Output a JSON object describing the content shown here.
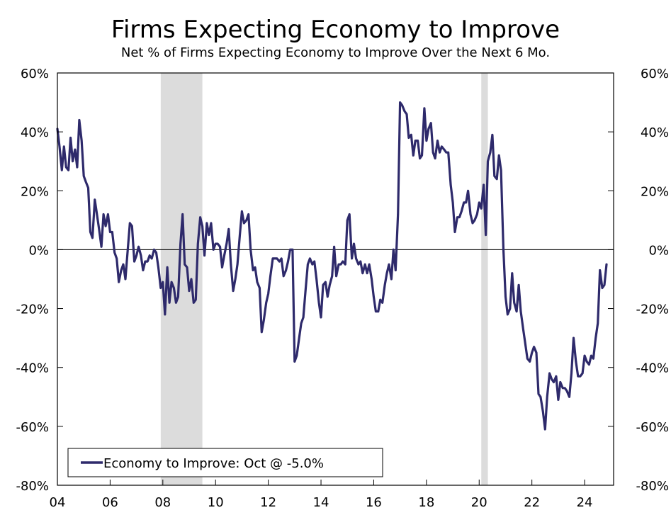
{
  "chart_data": {
    "type": "line",
    "title": "Firms Expecting Economy to Improve",
    "subtitle": "Net % of Firms Expecting Economy to Improve Over the Next 6 Mo.",
    "xlabel": "",
    "ylabel": "",
    "xlim": [
      2004,
      2025.1
    ],
    "ylim": [
      -80,
      60
    ],
    "x_ticks": [
      2004,
      2006,
      2008,
      2010,
      2012,
      2014,
      2016,
      2018,
      2020,
      2022,
      2024
    ],
    "x_tick_labels": [
      "04",
      "06",
      "08",
      "10",
      "12",
      "14",
      "16",
      "18",
      "20",
      "22",
      "24"
    ],
    "y_ticks": [
      60,
      40,
      20,
      0,
      -20,
      -40,
      -60,
      -80
    ],
    "y_tick_labels": [
      "60%",
      "40%",
      "20%",
      "0%",
      "-20%",
      "-40%",
      "-60%",
      "-80%"
    ],
    "y_axes": "left-and-right",
    "grid": false,
    "zero_line": true,
    "legend_position": "bottom-left",
    "recession_shading": [
      {
        "start": 2007.92,
        "end": 2009.5
      },
      {
        "start": 2020.08,
        "end": 2020.33
      }
    ],
    "series": [
      {
        "name": "Economy to Improve: Oct @ -5.0%",
        "color": "#2e2a6b",
        "points": [
          [
            2004.0,
            41
          ],
          [
            2004.08,
            35
          ],
          [
            2004.17,
            27
          ],
          [
            2004.25,
            35
          ],
          [
            2004.33,
            28
          ],
          [
            2004.42,
            27
          ],
          [
            2004.5,
            38
          ],
          [
            2004.58,
            30
          ],
          [
            2004.67,
            34
          ],
          [
            2004.75,
            28
          ],
          [
            2004.83,
            44
          ],
          [
            2004.92,
            37
          ],
          [
            2005.0,
            25
          ],
          [
            2005.08,
            23
          ],
          [
            2005.17,
            21
          ],
          [
            2005.25,
            6
          ],
          [
            2005.33,
            4
          ],
          [
            2005.42,
            17
          ],
          [
            2005.5,
            12
          ],
          [
            2005.58,
            7
          ],
          [
            2005.67,
            1
          ],
          [
            2005.75,
            12
          ],
          [
            2005.83,
            8
          ],
          [
            2005.92,
            12
          ],
          [
            2006.0,
            6
          ],
          [
            2006.08,
            6
          ],
          [
            2006.17,
            -1
          ],
          [
            2006.25,
            -3
          ],
          [
            2006.33,
            -11
          ],
          [
            2006.42,
            -7
          ],
          [
            2006.5,
            -5
          ],
          [
            2006.58,
            -10
          ],
          [
            2006.67,
            0
          ],
          [
            2006.75,
            9
          ],
          [
            2006.83,
            8
          ],
          [
            2006.92,
            -4
          ],
          [
            2007.0,
            -2
          ],
          [
            2007.08,
            1
          ],
          [
            2007.17,
            -2
          ],
          [
            2007.25,
            -7
          ],
          [
            2007.33,
            -4
          ],
          [
            2007.42,
            -4
          ],
          [
            2007.5,
            -2
          ],
          [
            2007.58,
            -3
          ],
          [
            2007.67,
            0
          ],
          [
            2007.75,
            -1
          ],
          [
            2007.83,
            -6
          ],
          [
            2007.92,
            -13
          ],
          [
            2008.0,
            -11
          ],
          [
            2008.08,
            -22
          ],
          [
            2008.17,
            -6
          ],
          [
            2008.25,
            -18
          ],
          [
            2008.33,
            -11
          ],
          [
            2008.42,
            -13
          ],
          [
            2008.5,
            -18
          ],
          [
            2008.58,
            -16
          ],
          [
            2008.67,
            2
          ],
          [
            2008.75,
            12
          ],
          [
            2008.83,
            -5
          ],
          [
            2008.92,
            -6
          ],
          [
            2009.0,
            -14
          ],
          [
            2009.08,
            -10
          ],
          [
            2009.17,
            -18
          ],
          [
            2009.25,
            -17
          ],
          [
            2009.33,
            2
          ],
          [
            2009.42,
            11
          ],
          [
            2009.5,
            8
          ],
          [
            2009.58,
            -2
          ],
          [
            2009.67,
            9
          ],
          [
            2009.75,
            5
          ],
          [
            2009.83,
            9
          ],
          [
            2009.92,
            0
          ],
          [
            2010.0,
            2
          ],
          [
            2010.08,
            2
          ],
          [
            2010.17,
            1
          ],
          [
            2010.25,
            -6
          ],
          [
            2010.33,
            -2
          ],
          [
            2010.42,
            2
          ],
          [
            2010.5,
            7
          ],
          [
            2010.58,
            -5
          ],
          [
            2010.67,
            -14
          ],
          [
            2010.75,
            -10
          ],
          [
            2010.83,
            -5
          ],
          [
            2010.92,
            5
          ],
          [
            2011.0,
            13
          ],
          [
            2011.08,
            9
          ],
          [
            2011.17,
            10
          ],
          [
            2011.25,
            12
          ],
          [
            2011.33,
            0
          ],
          [
            2011.42,
            -7
          ],
          [
            2011.5,
            -6
          ],
          [
            2011.58,
            -11
          ],
          [
            2011.67,
            -13
          ],
          [
            2011.75,
            -28
          ],
          [
            2011.83,
            -24
          ],
          [
            2011.92,
            -18
          ],
          [
            2012.0,
            -15
          ],
          [
            2012.08,
            -9
          ],
          [
            2012.17,
            -3
          ],
          [
            2012.25,
            -3
          ],
          [
            2012.33,
            -3
          ],
          [
            2012.42,
            -4
          ],
          [
            2012.5,
            -3
          ],
          [
            2012.58,
            -9
          ],
          [
            2012.67,
            -7
          ],
          [
            2012.75,
            -4
          ],
          [
            2012.83,
            0
          ],
          [
            2012.92,
            0
          ],
          [
            2013.0,
            -38
          ],
          [
            2013.08,
            -36
          ],
          [
            2013.17,
            -30
          ],
          [
            2013.25,
            -25
          ],
          [
            2013.33,
            -23
          ],
          [
            2013.42,
            -13
          ],
          [
            2013.5,
            -5
          ],
          [
            2013.58,
            -3
          ],
          [
            2013.67,
            -5
          ],
          [
            2013.75,
            -4
          ],
          [
            2013.83,
            -10
          ],
          [
            2013.92,
            -18
          ],
          [
            2014.0,
            -23
          ],
          [
            2014.08,
            -12
          ],
          [
            2014.17,
            -11
          ],
          [
            2014.25,
            -16
          ],
          [
            2014.33,
            -12
          ],
          [
            2014.42,
            -9
          ],
          [
            2014.5,
            1
          ],
          [
            2014.58,
            -9
          ],
          [
            2014.67,
            -5
          ],
          [
            2014.75,
            -5
          ],
          [
            2014.83,
            -4
          ],
          [
            2014.92,
            -5
          ],
          [
            2015.0,
            10
          ],
          [
            2015.08,
            12
          ],
          [
            2015.17,
            -3
          ],
          [
            2015.25,
            2
          ],
          [
            2015.33,
            -3
          ],
          [
            2015.42,
            -5
          ],
          [
            2015.5,
            -4
          ],
          [
            2015.58,
            -8
          ],
          [
            2015.67,
            -5
          ],
          [
            2015.75,
            -8
          ],
          [
            2015.83,
            -5
          ],
          [
            2015.92,
            -10
          ],
          [
            2016.0,
            -16
          ],
          [
            2016.08,
            -21
          ],
          [
            2016.17,
            -21
          ],
          [
            2016.25,
            -17
          ],
          [
            2016.33,
            -18
          ],
          [
            2016.42,
            -12
          ],
          [
            2016.5,
            -8
          ],
          [
            2016.58,
            -5
          ],
          [
            2016.67,
            -10
          ],
          [
            2016.75,
            0
          ],
          [
            2016.83,
            -7
          ],
          [
            2016.92,
            12
          ],
          [
            2017.0,
            50
          ],
          [
            2017.08,
            49
          ],
          [
            2017.17,
            47
          ],
          [
            2017.25,
            46
          ],
          [
            2017.33,
            38
          ],
          [
            2017.42,
            39
          ],
          [
            2017.5,
            32
          ],
          [
            2017.58,
            37
          ],
          [
            2017.67,
            37
          ],
          [
            2017.75,
            31
          ],
          [
            2017.83,
            32
          ],
          [
            2017.92,
            48
          ],
          [
            2018.0,
            37
          ],
          [
            2018.08,
            41
          ],
          [
            2018.17,
            43
          ],
          [
            2018.25,
            33
          ],
          [
            2018.33,
            31
          ],
          [
            2018.42,
            37
          ],
          [
            2018.5,
            33
          ],
          [
            2018.58,
            35
          ],
          [
            2018.67,
            34
          ],
          [
            2018.75,
            33
          ],
          [
            2018.83,
            33
          ],
          [
            2018.92,
            22
          ],
          [
            2019.0,
            16
          ],
          [
            2019.08,
            6
          ],
          [
            2019.17,
            11
          ],
          [
            2019.25,
            11
          ],
          [
            2019.33,
            13
          ],
          [
            2019.42,
            16
          ],
          [
            2019.5,
            16
          ],
          [
            2019.58,
            20
          ],
          [
            2019.67,
            12
          ],
          [
            2019.75,
            9
          ],
          [
            2019.83,
            10
          ],
          [
            2019.92,
            12
          ],
          [
            2020.0,
            16
          ],
          [
            2020.08,
            14
          ],
          [
            2020.17,
            22
          ],
          [
            2020.25,
            5
          ],
          [
            2020.33,
            30
          ],
          [
            2020.42,
            33
          ],
          [
            2020.5,
            39
          ],
          [
            2020.58,
            25
          ],
          [
            2020.67,
            24
          ],
          [
            2020.75,
            32
          ],
          [
            2020.83,
            27
          ],
          [
            2020.92,
            0
          ],
          [
            2021.0,
            -16
          ],
          [
            2021.08,
            -22
          ],
          [
            2021.17,
            -20
          ],
          [
            2021.25,
            -8
          ],
          [
            2021.33,
            -18
          ],
          [
            2021.42,
            -21
          ],
          [
            2021.5,
            -12
          ],
          [
            2021.58,
            -21
          ],
          [
            2021.67,
            -27
          ],
          [
            2021.75,
            -32
          ],
          [
            2021.83,
            -37
          ],
          [
            2021.92,
            -38
          ],
          [
            2022.0,
            -35
          ],
          [
            2022.08,
            -33
          ],
          [
            2022.17,
            -35
          ],
          [
            2022.25,
            -49
          ],
          [
            2022.33,
            -50
          ],
          [
            2022.42,
            -55
          ],
          [
            2022.5,
            -61
          ],
          [
            2022.58,
            -50
          ],
          [
            2022.67,
            -42
          ],
          [
            2022.75,
            -44
          ],
          [
            2022.83,
            -45
          ],
          [
            2022.92,
            -43
          ],
          [
            2023.0,
            -51
          ],
          [
            2023.08,
            -45
          ],
          [
            2023.17,
            -47
          ],
          [
            2023.25,
            -47
          ],
          [
            2023.33,
            -48
          ],
          [
            2023.42,
            -50
          ],
          [
            2023.5,
            -42
          ],
          [
            2023.58,
            -30
          ],
          [
            2023.67,
            -38
          ],
          [
            2023.75,
            -43
          ],
          [
            2023.83,
            -43
          ],
          [
            2023.92,
            -42
          ],
          [
            2024.0,
            -36
          ],
          [
            2024.08,
            -38
          ],
          [
            2024.17,
            -39
          ],
          [
            2024.25,
            -36
          ],
          [
            2024.33,
            -37
          ],
          [
            2024.42,
            -30
          ],
          [
            2024.5,
            -25
          ],
          [
            2024.58,
            -7
          ],
          [
            2024.67,
            -13
          ],
          [
            2024.75,
            -12
          ],
          [
            2024.83,
            -5
          ]
        ]
      }
    ]
  }
}
